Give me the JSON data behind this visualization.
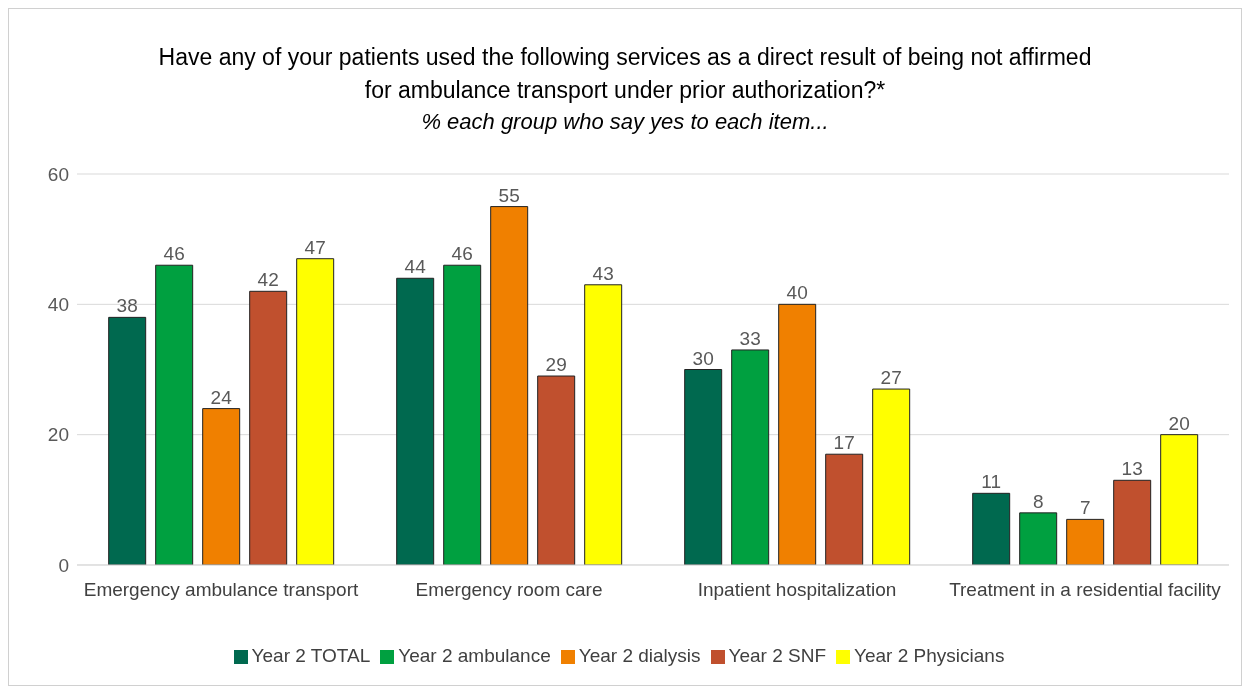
{
  "chart_data": {
    "type": "bar",
    "title": "Have any of your patients used the following services as a direct result of being not affirmed for ambulance transport under prior authorization?*",
    "subtitle": "% each group who say yes to each item...",
    "categories": [
      "Emergency ambulance transport",
      "Emergency room care",
      "Inpatient hospitalization",
      "Treatment in a residential facility"
    ],
    "series": [
      {
        "name": "Year 2 TOTAL",
        "color": "#00694f",
        "values": [
          38,
          44,
          30,
          11
        ]
      },
      {
        "name": "Year 2 ambulance",
        "color": "#00a040",
        "values": [
          46,
          46,
          33,
          8
        ]
      },
      {
        "name": "Year 2 dialysis",
        "color": "#f08000",
        "values": [
          24,
          55,
          40,
          7
        ]
      },
      {
        "name": "Year 2 SNF",
        "color": "#c0502e",
        "values": [
          42,
          29,
          17,
          13
        ]
      },
      {
        "name": "Year 2 Physicians",
        "color": "#ffff00",
        "values": [
          47,
          43,
          27,
          20
        ]
      }
    ],
    "ylim": [
      0,
      60
    ],
    "yticks": [
      0,
      20,
      40,
      60
    ],
    "grid": "y",
    "legend": "bottom",
    "data_labels": true
  }
}
